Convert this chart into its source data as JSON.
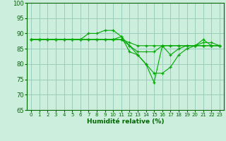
{
  "xlabel": "Humidité relative (%)",
  "background_color": "#cceedd",
  "grid_color": "#99ccbb",
  "line_color": "#00aa00",
  "marker_color": "#00aa00",
  "ylim": [
    65,
    100
  ],
  "xlim": [
    -0.5,
    23.5
  ],
  "yticks": [
    65,
    70,
    75,
    80,
    85,
    90,
    95,
    100
  ],
  "xticks": [
    0,
    1,
    2,
    3,
    4,
    5,
    6,
    7,
    8,
    9,
    10,
    11,
    12,
    13,
    14,
    15,
    16,
    17,
    18,
    19,
    20,
    21,
    22,
    23
  ],
  "series": [
    [
      88,
      88,
      88,
      88,
      88,
      88,
      88,
      90,
      90,
      91,
      91,
      89,
      86,
      84,
      84,
      84,
      86,
      86,
      86,
      86,
      86,
      87,
      87,
      86
    ],
    [
      88,
      88,
      88,
      88,
      88,
      88,
      88,
      88,
      88,
      88,
      88,
      88,
      87,
      86,
      86,
      86,
      86,
      86,
      86,
      86,
      86,
      86,
      86,
      86
    ],
    [
      88,
      88,
      88,
      88,
      88,
      88,
      88,
      88,
      88,
      88,
      88,
      89,
      84,
      83,
      80,
      74,
      86,
      83,
      85,
      86,
      86,
      88,
      86,
      86
    ],
    [
      88,
      88,
      88,
      88,
      88,
      88,
      88,
      88,
      88,
      88,
      88,
      88,
      86,
      83,
      80,
      77,
      77,
      79,
      83,
      85,
      86,
      86,
      86,
      86
    ]
  ]
}
